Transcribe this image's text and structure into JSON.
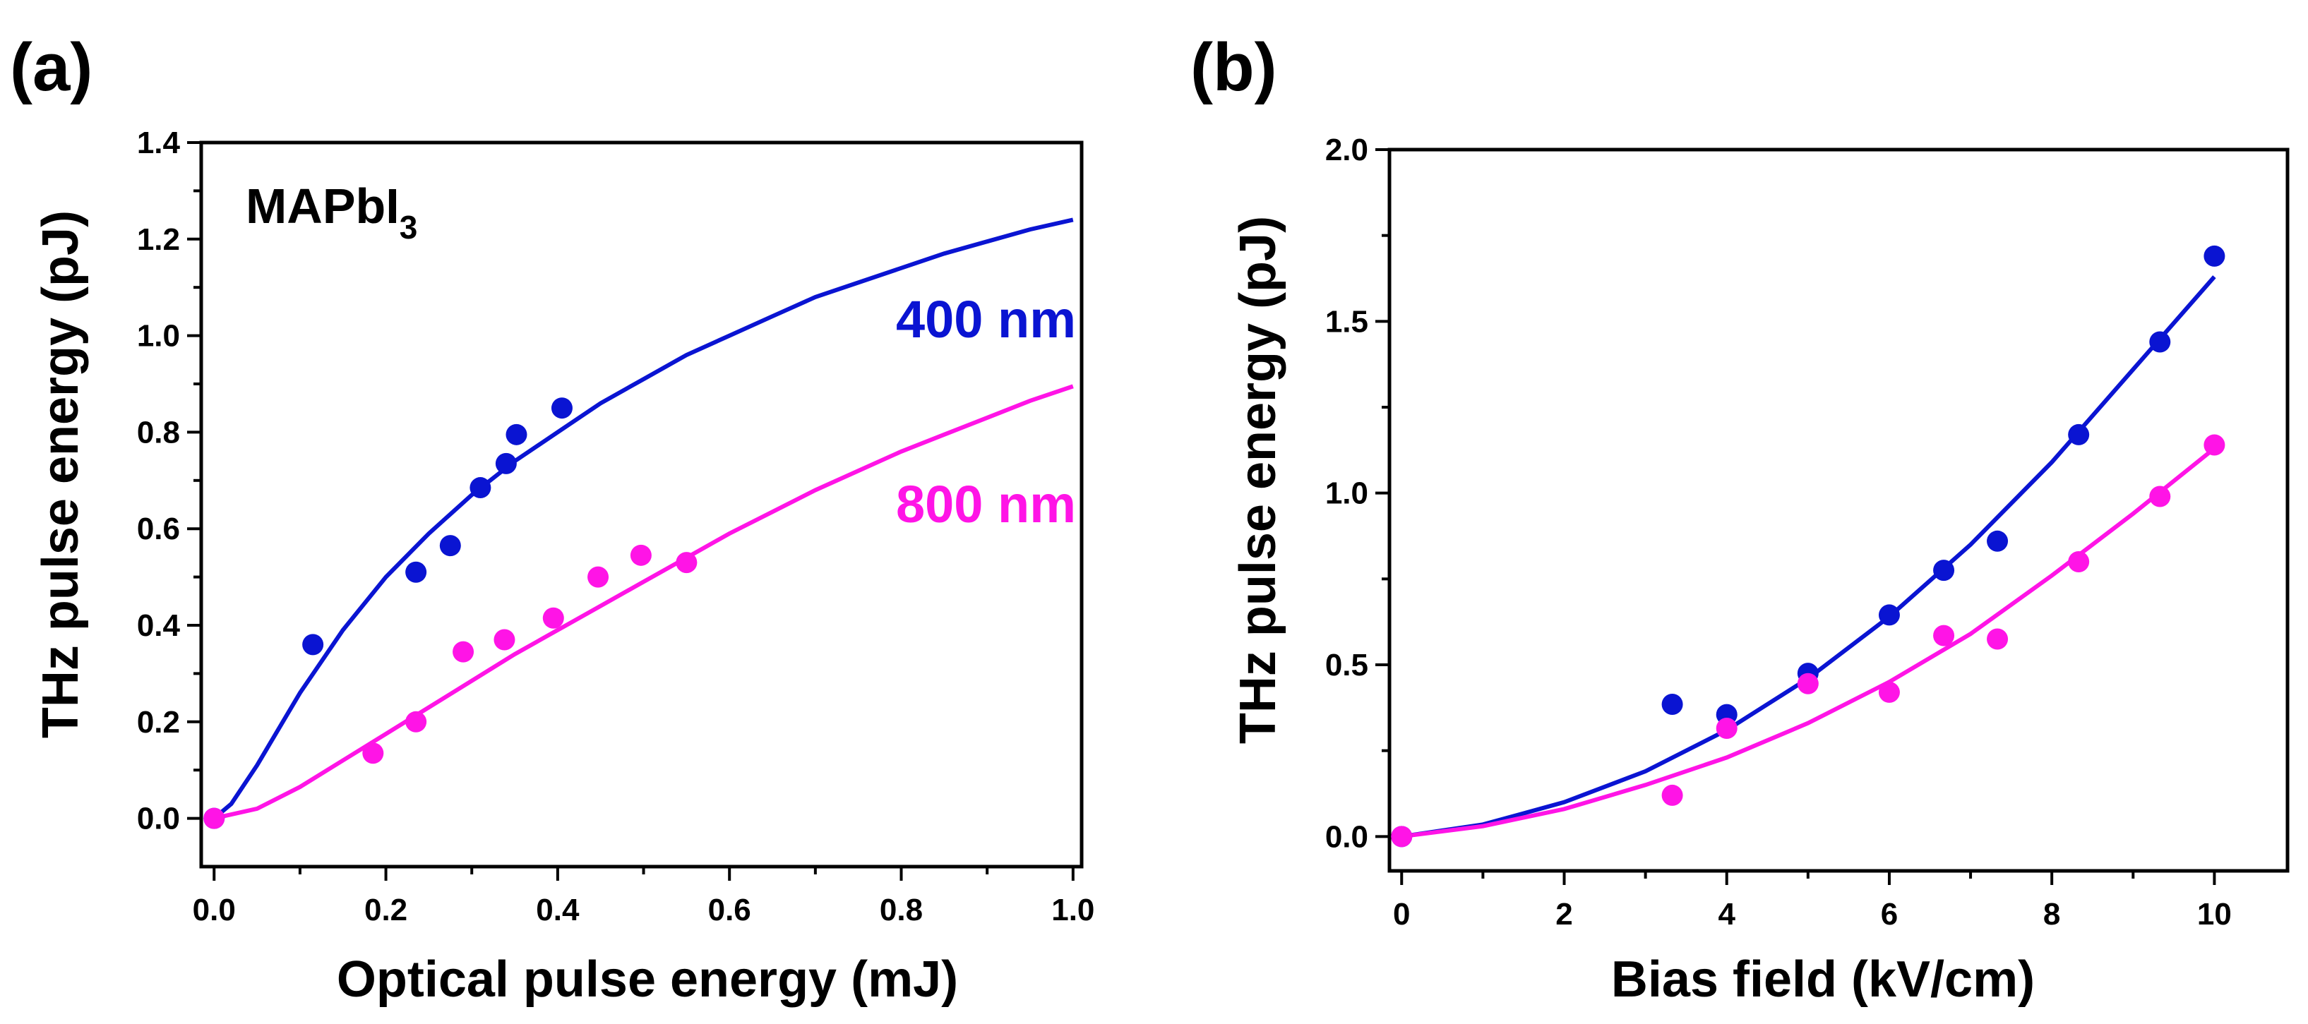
{
  "colors": {
    "series_400": "#0a14d2",
    "series_800": "#ff14e6",
    "axis": "#000000"
  },
  "chart_data": [
    {
      "type": "scatter",
      "panel_label": "(a)",
      "annotation_sample": "MAPbI",
      "annotation_sample_subscript": "3",
      "xlabel": "Optical pulse energy (mJ)",
      "ylabel": "THz pulse energy (pJ)",
      "xlim": [
        -0.015,
        1.01
      ],
      "ylim": [
        -0.1,
        1.4
      ],
      "xticks": [
        0.0,
        0.2,
        0.4,
        0.6,
        0.8,
        1.0
      ],
      "xtick_labels": [
        "0.0",
        "0.2",
        "0.4",
        "0.6",
        "0.8",
        "1.0"
      ],
      "yticks": [
        0.0,
        0.2,
        0.4,
        0.6,
        0.8,
        1.0,
        1.2,
        1.4
      ],
      "ytick_labels": [
        "0.0",
        "0.2",
        "0.4",
        "0.6",
        "0.8",
        "1.0",
        "1.2",
        "1.4"
      ],
      "series": [
        {
          "name": "400 nm",
          "color": "#0a14d2",
          "x": [
            0.0,
            0.115,
            0.235,
            0.275,
            0.31,
            0.34,
            0.352,
            0.405
          ],
          "y": [
            0.0,
            0.36,
            0.51,
            0.565,
            0.685,
            0.735,
            0.795,
            0.85
          ],
          "fit_x": [
            0.0,
            0.02,
            0.05,
            0.1,
            0.15,
            0.2,
            0.25,
            0.3,
            0.35,
            0.4,
            0.45,
            0.5,
            0.55,
            0.6,
            0.65,
            0.7,
            0.75,
            0.8,
            0.85,
            0.9,
            0.95,
            1.0
          ],
          "fit_y": [
            0.0,
            0.03,
            0.11,
            0.26,
            0.39,
            0.5,
            0.59,
            0.67,
            0.74,
            0.8,
            0.86,
            0.91,
            0.96,
            1.0,
            1.04,
            1.08,
            1.11,
            1.14,
            1.17,
            1.195,
            1.22,
            1.24
          ]
        },
        {
          "name": "800 nm",
          "color": "#ff14e6",
          "x": [
            0.0,
            0.185,
            0.235,
            0.29,
            0.338,
            0.395,
            0.447,
            0.497,
            0.55
          ],
          "y": [
            0.0,
            0.135,
            0.2,
            0.345,
            0.37,
            0.415,
            0.5,
            0.545,
            0.53
          ],
          "fit_x": [
            0.0,
            0.05,
            0.1,
            0.15,
            0.2,
            0.25,
            0.3,
            0.35,
            0.4,
            0.45,
            0.5,
            0.55,
            0.6,
            0.65,
            0.7,
            0.75,
            0.8,
            0.85,
            0.9,
            0.95,
            1.0
          ],
          "fit_y": [
            0.0,
            0.02,
            0.065,
            0.12,
            0.175,
            0.23,
            0.285,
            0.34,
            0.39,
            0.44,
            0.49,
            0.54,
            0.59,
            0.635,
            0.68,
            0.72,
            0.76,
            0.795,
            0.83,
            0.865,
            0.895
          ]
        }
      ]
    },
    {
      "type": "scatter",
      "panel_label": "(b)",
      "xlabel": "Bias field (kV/cm)",
      "ylabel": "THz pulse energy (pJ)",
      "xlim": [
        -0.15,
        10.9
      ],
      "ylim": [
        -0.1,
        2.0
      ],
      "xticks": [
        0,
        2,
        4,
        6,
        8,
        10
      ],
      "xtick_labels": [
        "0",
        "2",
        "4",
        "6",
        "8",
        "10"
      ],
      "yticks": [
        0.0,
        0.5,
        1.0,
        1.5,
        2.0
      ],
      "ytick_labels": [
        "0.0",
        "0.5",
        "1.0",
        "1.5",
        "2.0"
      ],
      "series": [
        {
          "name": "400 nm",
          "color": "#0a14d2",
          "x": [
            0,
            3.33,
            4.0,
            5.0,
            6.0,
            6.67,
            7.33,
            8.33,
            9.33,
            10.0
          ],
          "y": [
            0.0,
            0.385,
            0.355,
            0.475,
            0.645,
            0.775,
            0.86,
            1.17,
            1.44,
            1.69
          ],
          "fit_x": [
            0,
            1,
            2,
            3,
            4,
            5,
            6,
            7,
            8,
            9,
            10
          ],
          "fit_y": [
            0.0,
            0.035,
            0.1,
            0.19,
            0.31,
            0.46,
            0.64,
            0.85,
            1.09,
            1.36,
            1.63
          ]
        },
        {
          "name": "800 nm",
          "color": "#ff14e6",
          "x": [
            0,
            3.33,
            4.0,
            5.0,
            6.0,
            6.67,
            7.33,
            8.33,
            9.33,
            10.0
          ],
          "y": [
            0.0,
            0.12,
            0.315,
            0.445,
            0.42,
            0.585,
            0.575,
            0.8,
            0.99,
            1.14
          ],
          "fit_x": [
            0,
            1,
            2,
            3,
            4,
            5,
            6,
            7,
            8,
            9,
            10
          ],
          "fit_y": [
            0.0,
            0.03,
            0.08,
            0.15,
            0.23,
            0.33,
            0.45,
            0.59,
            0.76,
            0.94,
            1.13
          ]
        }
      ]
    }
  ],
  "annotations": {
    "label_400": "400 nm",
    "label_800": "800 nm"
  }
}
